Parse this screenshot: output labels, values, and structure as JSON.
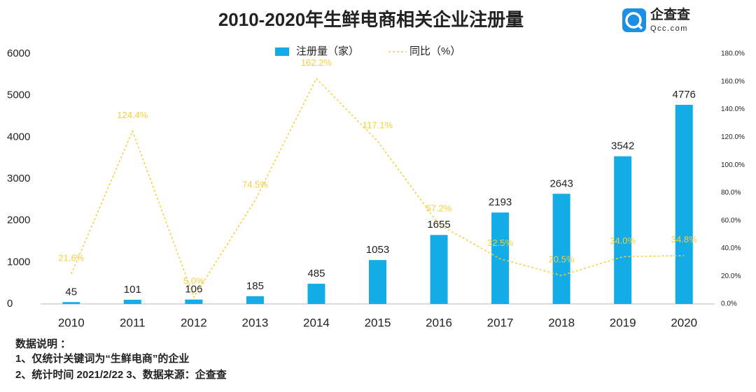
{
  "chart_data": {
    "type": "bar",
    "title": "2010-2020年生鲜电商相关企业注册量",
    "categories": [
      "2010",
      "2011",
      "2012",
      "2013",
      "2014",
      "2015",
      "2016",
      "2017",
      "2018",
      "2019",
      "2020"
    ],
    "series": [
      {
        "name": "注册量（家）",
        "type": "bar",
        "color": "#14ace6",
        "values": [
          45,
          101,
          106,
          185,
          485,
          1053,
          1655,
          2193,
          2643,
          3542,
          4776
        ]
      },
      {
        "name": "同比（%）",
        "type": "line",
        "axis": "y2",
        "color": "#f2cf3a",
        "dashed": true,
        "values": [
          21.6,
          124.4,
          5.0,
          74.5,
          162.2,
          117.1,
          57.2,
          32.5,
          20.5,
          34.0,
          34.8
        ],
        "value_labels": [
          "21.6%",
          "124.4%",
          "5.0%",
          "74.5%",
          "162.2%",
          "117.1%",
          "57.2%",
          "32.5%",
          "20.5%",
          "34.0%",
          "34.8%"
        ]
      }
    ],
    "ylim": [
      0,
      6000
    ],
    "yticks": [
      0,
      1000,
      2000,
      3000,
      4000,
      5000,
      6000
    ],
    "y2lim": [
      0,
      180
    ],
    "y2ticks": [
      {
        "value": 0,
        "label": "0.0%"
      },
      {
        "value": 20,
        "label": "20.0%"
      },
      {
        "value": 40,
        "label": "40.0%"
      },
      {
        "value": 60,
        "label": "60.0%"
      },
      {
        "value": 80,
        "label": "80.0%"
      },
      {
        "value": 100,
        "label": "100.0%"
      },
      {
        "value": 120,
        "label": "120.0%"
      },
      {
        "value": 140,
        "label": "140.0%"
      },
      {
        "value": 160,
        "label": "160.0%"
      },
      {
        "value": 180,
        "label": "180.0%"
      }
    ],
    "grid": false,
    "legend": "top"
  },
  "logo": {
    "name": "企查查",
    "domain": "Qcc.com"
  },
  "notes": [
    "数据说明 ：",
    "1、仅统计关键词为“生鲜电商”的企业",
    "2、统计时间  2021/2/22    3、数据来源：企查查"
  ]
}
